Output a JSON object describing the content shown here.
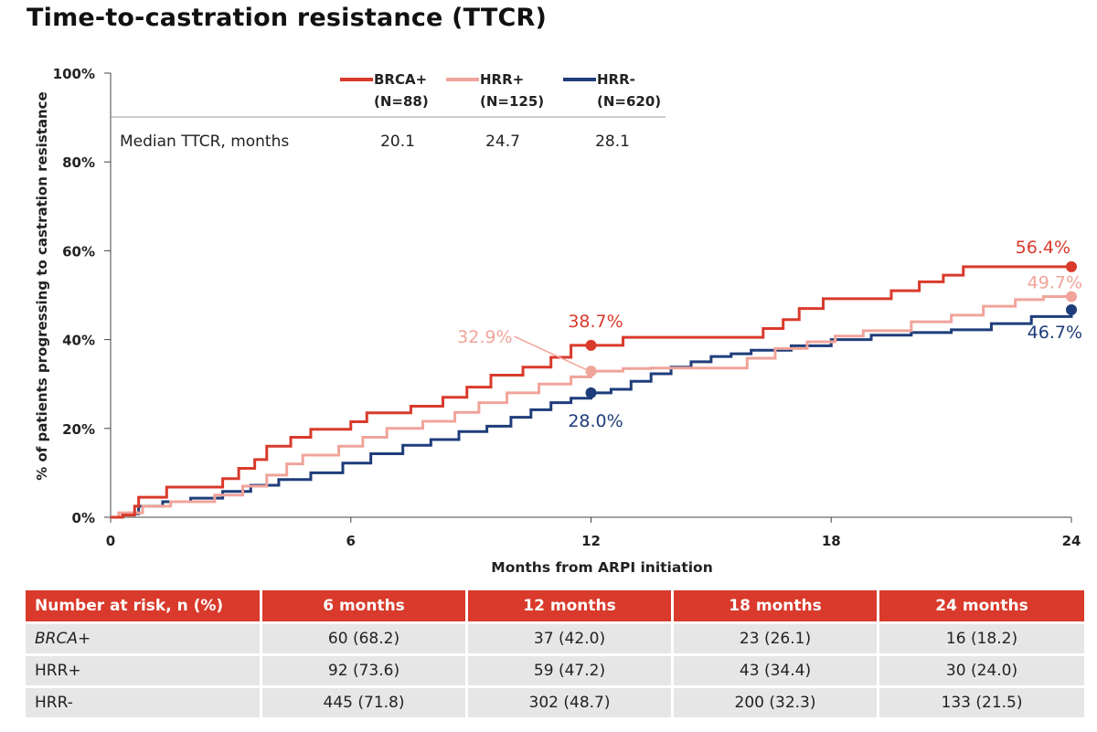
{
  "title": "Time-to-castration resistance (TTCR)",
  "colors": {
    "brca": "#d93a2b",
    "hrr_pos": "#f0a49a",
    "hrr_neg": "#1f3d7a",
    "header_red": "#d93a2b",
    "row_gray": "#e6e6e6"
  },
  "chart_data": {
    "type": "line",
    "title": "Time-to-castration resistance (TTCR)",
    "xlabel": "Months from ARPI initiation",
    "ylabel": "% of patients progressing to castration resistance",
    "xlim": [
      0,
      24
    ],
    "ylim": [
      0,
      100
    ],
    "x_ticks": [
      "0",
      "6",
      "12",
      "18",
      "24"
    ],
    "y_ticks": [
      "0%",
      "20%",
      "40%",
      "60%",
      "80%",
      "100%"
    ],
    "grid": false,
    "legend_position": "top-center",
    "median_label": "Median TTCR, months",
    "series": [
      {
        "name": "BRCA+",
        "n_label": "(N=88)",
        "median": "20.1",
        "color": "#d93a2b",
        "points": [
          [
            0,
            0
          ],
          [
            0.3,
            0.5
          ],
          [
            0.6,
            2.5
          ],
          [
            0.7,
            4.5
          ],
          [
            1.4,
            6.8
          ],
          [
            2.8,
            8.7
          ],
          [
            3.2,
            11
          ],
          [
            3.6,
            13
          ],
          [
            3.9,
            16
          ],
          [
            4.5,
            18
          ],
          [
            5.0,
            19.8
          ],
          [
            6.0,
            21.5
          ],
          [
            6.4,
            23.5
          ],
          [
            7.5,
            25
          ],
          [
            8.3,
            27
          ],
          [
            8.9,
            29.3
          ],
          [
            9.5,
            32
          ],
          [
            10.3,
            33.8
          ],
          [
            11.0,
            36
          ],
          [
            11.5,
            38.7
          ],
          [
            12.0,
            38.7
          ],
          [
            12.3,
            38.7
          ],
          [
            12.8,
            40.5
          ],
          [
            16.3,
            42.5
          ],
          [
            16.8,
            44.5
          ],
          [
            17.2,
            47
          ],
          [
            17.8,
            49.2
          ],
          [
            19.5,
            51
          ],
          [
            20.2,
            53
          ],
          [
            20.8,
            54.5
          ],
          [
            21.3,
            56.4
          ],
          [
            24,
            56.4
          ]
        ],
        "endpoints": [
          {
            "x": 12,
            "y": 38.7,
            "label": "38.7%"
          },
          {
            "x": 24,
            "y": 56.4,
            "label": "56.4%"
          }
        ]
      },
      {
        "name": "HRR+",
        "n_label": "(N=125)",
        "median": "24.7",
        "color": "#f0a49a",
        "points": [
          [
            0,
            0
          ],
          [
            0.2,
            1
          ],
          [
            0.8,
            2.5
          ],
          [
            1.5,
            3.5
          ],
          [
            2.6,
            5
          ],
          [
            3.3,
            7
          ],
          [
            3.9,
            9.5
          ],
          [
            4.4,
            12
          ],
          [
            4.8,
            14
          ],
          [
            5.7,
            16
          ],
          [
            6.3,
            18
          ],
          [
            6.9,
            20
          ],
          [
            7.8,
            21.6
          ],
          [
            8.6,
            23.6
          ],
          [
            9.2,
            25.8
          ],
          [
            9.9,
            28
          ],
          [
            10.7,
            30
          ],
          [
            11.5,
            31.6
          ],
          [
            12.0,
            32.9
          ],
          [
            12.8,
            33.5
          ],
          [
            13.5,
            33.6
          ],
          [
            15.2,
            33.6
          ],
          [
            15.9,
            35.8
          ],
          [
            16.6,
            38
          ],
          [
            17.4,
            39.5
          ],
          [
            18.1,
            40.8
          ],
          [
            18.8,
            42
          ],
          [
            20.0,
            44
          ],
          [
            21.0,
            45.5
          ],
          [
            21.8,
            47.5
          ],
          [
            22.6,
            49
          ],
          [
            23.3,
            49.7
          ],
          [
            24,
            49.7
          ]
        ],
        "endpoints": [
          {
            "x": 12,
            "y": 32.9,
            "label": "32.9%"
          },
          {
            "x": 24,
            "y": 49.7,
            "label": "49.7%"
          }
        ]
      },
      {
        "name": "HRR-",
        "n_label": "(N=620)",
        "median": "28.1",
        "color": "#1f3d7a",
        "points": [
          [
            0,
            0
          ],
          [
            0.3,
            0.8
          ],
          [
            0.7,
            2.5
          ],
          [
            1.3,
            3.5
          ],
          [
            2.0,
            4.3
          ],
          [
            2.8,
            5.8
          ],
          [
            3.5,
            7.2
          ],
          [
            4.2,
            8.5
          ],
          [
            5.0,
            10
          ],
          [
            5.8,
            12.2
          ],
          [
            6.5,
            14.3
          ],
          [
            7.3,
            16.2
          ],
          [
            8.0,
            17.5
          ],
          [
            8.7,
            19.3
          ],
          [
            9.4,
            20.5
          ],
          [
            10.0,
            22.5
          ],
          [
            10.5,
            24.2
          ],
          [
            11.0,
            25.8
          ],
          [
            11.5,
            26.8
          ],
          [
            12.0,
            28.0
          ],
          [
            12.5,
            28.8
          ],
          [
            13.0,
            30.6
          ],
          [
            13.5,
            32.3
          ],
          [
            14.0,
            33.8
          ],
          [
            14.5,
            35
          ],
          [
            15.0,
            36.2
          ],
          [
            15.5,
            36.8
          ],
          [
            16.0,
            37.6
          ],
          [
            17.0,
            38.6
          ],
          [
            18.0,
            40
          ],
          [
            19.0,
            41
          ],
          [
            20.0,
            41.6
          ],
          [
            21.0,
            42.2
          ],
          [
            22.0,
            43.6
          ],
          [
            23.0,
            45.2
          ],
          [
            24,
            46.7
          ]
        ],
        "endpoints": [
          {
            "x": 12,
            "y": 28.0,
            "label": "28.0%"
          },
          {
            "x": 24,
            "y": 46.7,
            "label": "46.7%"
          }
        ]
      }
    ]
  },
  "risk_table": {
    "header": [
      "Number at risk, n (%)",
      "6 months",
      "12 months",
      "18 months",
      "24 months"
    ],
    "rows": [
      {
        "label": "BRCA+",
        "values": [
          "60 (68.2)",
          "37 (42.0)",
          "23 (26.1)",
          "16 (18.2)"
        ]
      },
      {
        "label": "HRR+",
        "values": [
          "92 (73.6)",
          "59 (47.2)",
          "43 (34.4)",
          "30 (24.0)"
        ]
      },
      {
        "label": "HRR-",
        "values": [
          "445 (71.8)",
          "302 (48.7)",
          "200 (32.3)",
          "133 (21.5)"
        ]
      }
    ]
  }
}
